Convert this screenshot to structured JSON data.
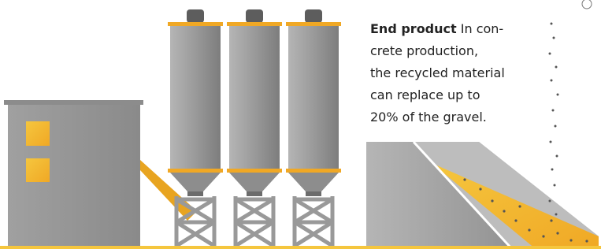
{
  "caption": {
    "title": "End product",
    "lines": [
      "In con-",
      "crete production,",
      "the recycled material",
      "can replace up to",
      "20% of the gravel."
    ]
  }
}
